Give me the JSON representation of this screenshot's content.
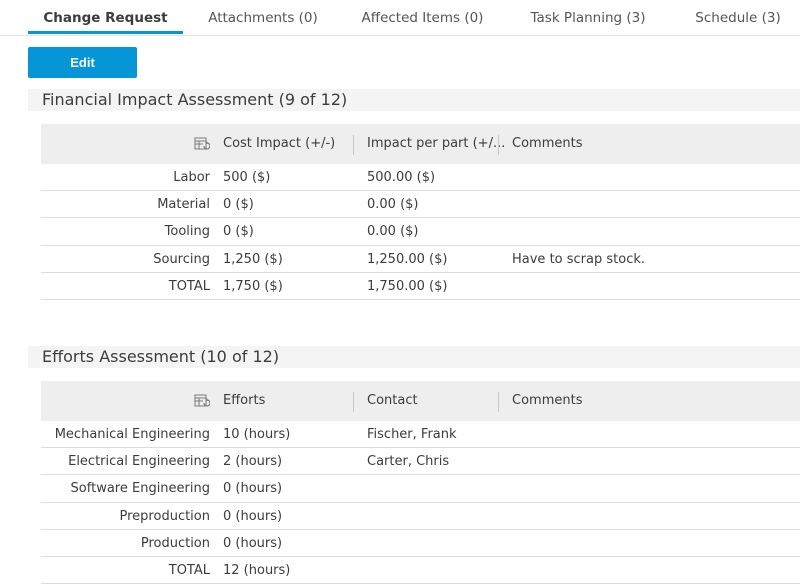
{
  "tabs": [
    {
      "label": "Change Request",
      "active": true
    },
    {
      "label": "Attachments (0)",
      "active": false
    },
    {
      "label": "Affected Items (0)",
      "active": false
    },
    {
      "label": "Task Planning (3)",
      "active": false
    },
    {
      "label": "Schedule (3)",
      "active": false
    }
  ],
  "edit_label": "Edit",
  "accent_color": "#0696d7",
  "financial": {
    "title": "Financial Impact Assessment (9 of 12)",
    "columns": [
      "Cost Impact (+/-)",
      "Impact per part (+/...",
      "Comments"
    ],
    "rows": [
      {
        "label": "Labor",
        "cost": "500 ($)",
        "per_part": "500.00 ($)",
        "comments": ""
      },
      {
        "label": "Material",
        "cost": "0 ($)",
        "per_part": "0.00 ($)",
        "comments": ""
      },
      {
        "label": "Tooling",
        "cost": "0 ($)",
        "per_part": "0.00 ($)",
        "comments": ""
      },
      {
        "label": "Sourcing",
        "cost": "1,250 ($)",
        "per_part": "1,250.00 ($)",
        "comments": "Have to scrap stock."
      },
      {
        "label": "TOTAL",
        "cost": "1,750 ($)",
        "per_part": "1,750.00 ($)",
        "comments": ""
      }
    ]
  },
  "efforts": {
    "title": "Efforts Assessment (10 of 12)",
    "columns": [
      "Efforts",
      "Contact",
      "Comments"
    ],
    "rows": [
      {
        "label": "Mechanical Engineering",
        "efforts": "10 (hours)",
        "contact": "Fischer, Frank",
        "comments": ""
      },
      {
        "label": "Electrical Engineering",
        "efforts": "2 (hours)",
        "contact": "Carter, Chris",
        "comments": ""
      },
      {
        "label": "Software Engineering",
        "efforts": "0 (hours)",
        "contact": "",
        "comments": ""
      },
      {
        "label": "Preproduction",
        "efforts": "0 (hours)",
        "contact": "",
        "comments": ""
      },
      {
        "label": "Production",
        "efforts": "0 (hours)",
        "contact": "",
        "comments": ""
      },
      {
        "label": "TOTAL",
        "efforts": "12 (hours)",
        "contact": "",
        "comments": ""
      }
    ]
  },
  "icons": {
    "column_config": "table-settings-icon"
  }
}
